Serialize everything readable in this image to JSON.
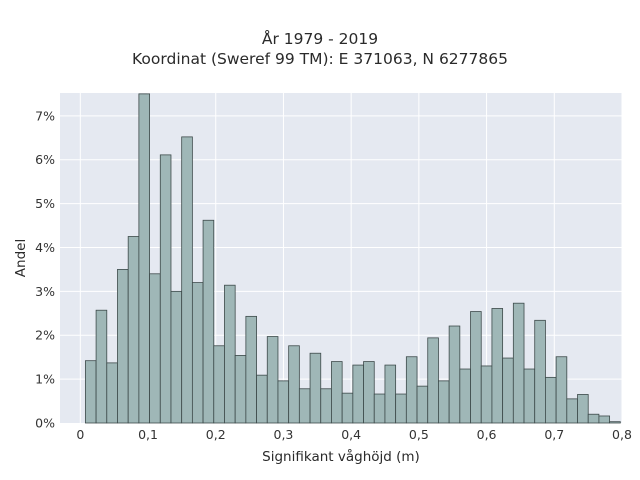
{
  "chart_data": {
    "type": "bar",
    "title": "År 1979 - 2019",
    "subtitle": "Koordinat (Sweref 99 TM): E 371063, N 6277865",
    "xlabel": "Signifikant våghöjd (m)",
    "ylabel": "Andel",
    "xlim": [
      -0.03,
      0.8
    ],
    "ylim": [
      0,
      0.0752
    ],
    "x_ticks": [
      0,
      0.1,
      0.2,
      0.3,
      0.4,
      0.5,
      0.6,
      0.7,
      0.8
    ],
    "x_tick_labels": [
      "0",
      "0,1",
      "0,2",
      "0,3",
      "0,4",
      "0,5",
      "0,6",
      "0,7",
      "0,8"
    ],
    "y_ticks": [
      0,
      0.01,
      0.02,
      0.03,
      0.04,
      0.05,
      0.06,
      0.07
    ],
    "y_tick_labels": [
      "0%",
      "1%",
      "2%",
      "3%",
      "4%",
      "5%",
      "6%",
      "7%"
    ],
    "bin_width": 0.0158,
    "bin_start": 0.0075,
    "values": [
      0.0142,
      0.0257,
      0.0137,
      0.035,
      0.0425,
      0.075,
      0.034,
      0.0611,
      0.03,
      0.0652,
      0.032,
      0.0462,
      0.0176,
      0.0314,
      0.0154,
      0.0243,
      0.0109,
      0.0197,
      0.0096,
      0.0176,
      0.0078,
      0.0159,
      0.0078,
      0.014,
      0.0068,
      0.0132,
      0.014,
      0.0066,
      0.0132,
      0.0066,
      0.0151,
      0.0084,
      0.0194,
      0.0096,
      0.0221,
      0.0123,
      0.0254,
      0.013,
      0.0261,
      0.0148,
      0.0273,
      0.0123,
      0.0234,
      0.0104,
      0.0151,
      0.0055,
      0.0065,
      0.002,
      0.0016,
      0.0003
    ],
    "grid": true,
    "colors": {
      "bar_fill": "#9fb7b7",
      "bar_stroke": "#3d4a4a",
      "plot_bg": "#e5e9f1",
      "grid": "#ffffff"
    }
  }
}
